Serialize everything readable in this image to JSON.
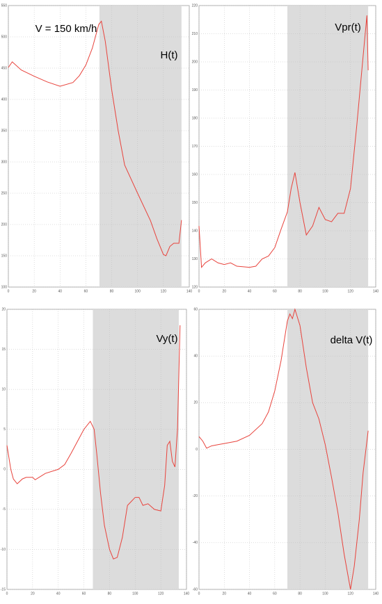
{
  "chart_data": [
    {
      "type": "line",
      "annotation": "V = 150 km/h",
      "x": [
        0,
        3,
        10,
        20,
        30,
        40,
        50,
        55,
        60,
        65,
        70,
        72,
        75,
        80,
        85,
        90,
        100,
        110,
        115,
        120,
        122,
        125,
        128,
        132,
        134
      ],
      "series": [
        {
          "name": "H(t)",
          "color": "#e8433c",
          "values": [
            451,
            460,
            447,
            437,
            428,
            421,
            427,
            438,
            455,
            482,
            520,
            525,
            493,
            415,
            350,
            295,
            250,
            206,
            177,
            152,
            150,
            165,
            170,
            170,
            207
          ]
        }
      ],
      "xlim": [
        0,
        140
      ],
      "xticks": [
        0,
        20,
        40,
        60,
        80,
        100,
        120,
        140
      ],
      "ylim": [
        100,
        550
      ],
      "yticks": [
        100,
        150,
        200,
        250,
        300,
        350,
        400,
        450,
        500,
        550
      ],
      "shade": [
        70.5,
        134
      ],
      "grid": true
    },
    {
      "type": "line",
      "x": [
        0,
        2,
        5,
        10,
        15,
        20,
        25,
        30,
        40,
        45,
        50,
        55,
        60,
        65,
        70,
        73,
        76,
        80,
        85,
        90,
        95,
        100,
        105,
        110,
        115,
        120,
        125,
        130,
        133,
        134
      ],
      "series": [
        {
          "name": "Vpr(t)",
          "color": "#e8433c",
          "values": [
            141.7,
            127,
            128.6,
            130,
            128.6,
            128,
            128.6,
            127.4,
            127,
            127.4,
            130,
            131,
            134,
            140.5,
            146.7,
            155,
            160.7,
            150,
            138.5,
            141.7,
            148.3,
            144,
            143.2,
            146.2,
            146.2,
            155,
            177.5,
            202,
            216.5,
            197
          ]
        }
      ],
      "xlim": [
        0,
        140
      ],
      "xticks": [
        0,
        20,
        40,
        60,
        80,
        100,
        120,
        140
      ],
      "ylim": [
        120,
        220
      ],
      "yticks": [
        120,
        130,
        140,
        150,
        160,
        170,
        180,
        190,
        200,
        210,
        220
      ],
      "shade": [
        70,
        134
      ],
      "grid": true
    },
    {
      "type": "line",
      "x": [
        0,
        3,
        5,
        8,
        12,
        15,
        20,
        22,
        25,
        30,
        40,
        45,
        50,
        55,
        60,
        65,
        68,
        70,
        73,
        76,
        80,
        83,
        86,
        90,
        94,
        97,
        100,
        103,
        106,
        110,
        115,
        120,
        123,
        125,
        127,
        129,
        131,
        133,
        135
      ],
      "series": [
        {
          "name": "Vy(t)",
          "color": "#e8433c",
          "values": [
            3,
            0,
            -1.2,
            -1.8,
            -1.2,
            -1,
            -1,
            -1.3,
            -1,
            -0.5,
            0,
            0.6,
            2,
            3.5,
            5,
            6,
            5,
            2,
            -3,
            -7,
            -10,
            -11.2,
            -11,
            -8.5,
            -4.5,
            -4,
            -3.5,
            -3.5,
            -4.5,
            -4.3,
            -5,
            -5.2,
            -2,
            3,
            3.5,
            1,
            0.3,
            5,
            18
          ]
        }
      ],
      "xlim": [
        0,
        140
      ],
      "xticks": [
        0,
        20,
        40,
        60,
        80,
        100,
        120,
        140
      ],
      "ylim": [
        -15,
        20
      ],
      "yticks": [
        -15,
        -10,
        -5,
        0,
        5,
        10,
        15,
        20
      ],
      "shade": [
        67,
        134
      ],
      "grid": true
    },
    {
      "type": "line",
      "x": [
        0,
        3,
        6,
        10,
        15,
        20,
        30,
        40,
        50,
        55,
        60,
        65,
        70,
        72,
        74,
        76,
        80,
        85,
        90,
        95,
        100,
        105,
        110,
        115,
        120,
        123,
        127,
        130,
        134
      ],
      "series": [
        {
          "name": "delta V(t)",
          "color": "#e8433c",
          "values": [
            5.5,
            3.5,
            0.5,
            1.5,
            2,
            2.5,
            3.5,
            6,
            11,
            16,
            25,
            38,
            55,
            58,
            56,
            60,
            53,
            35,
            20,
            13,
            2,
            -12,
            -27,
            -45,
            -60,
            -50,
            -30,
            -10,
            8
          ]
        }
      ],
      "xlim": [
        0,
        140
      ],
      "xticks": [
        0,
        20,
        40,
        60,
        80,
        100,
        120,
        140
      ],
      "ylim": [
        -60,
        60
      ],
      "yticks": [
        -60,
        -40,
        -20,
        0,
        20,
        40,
        60
      ],
      "shade": [
        70,
        134
      ],
      "grid": true
    }
  ]
}
